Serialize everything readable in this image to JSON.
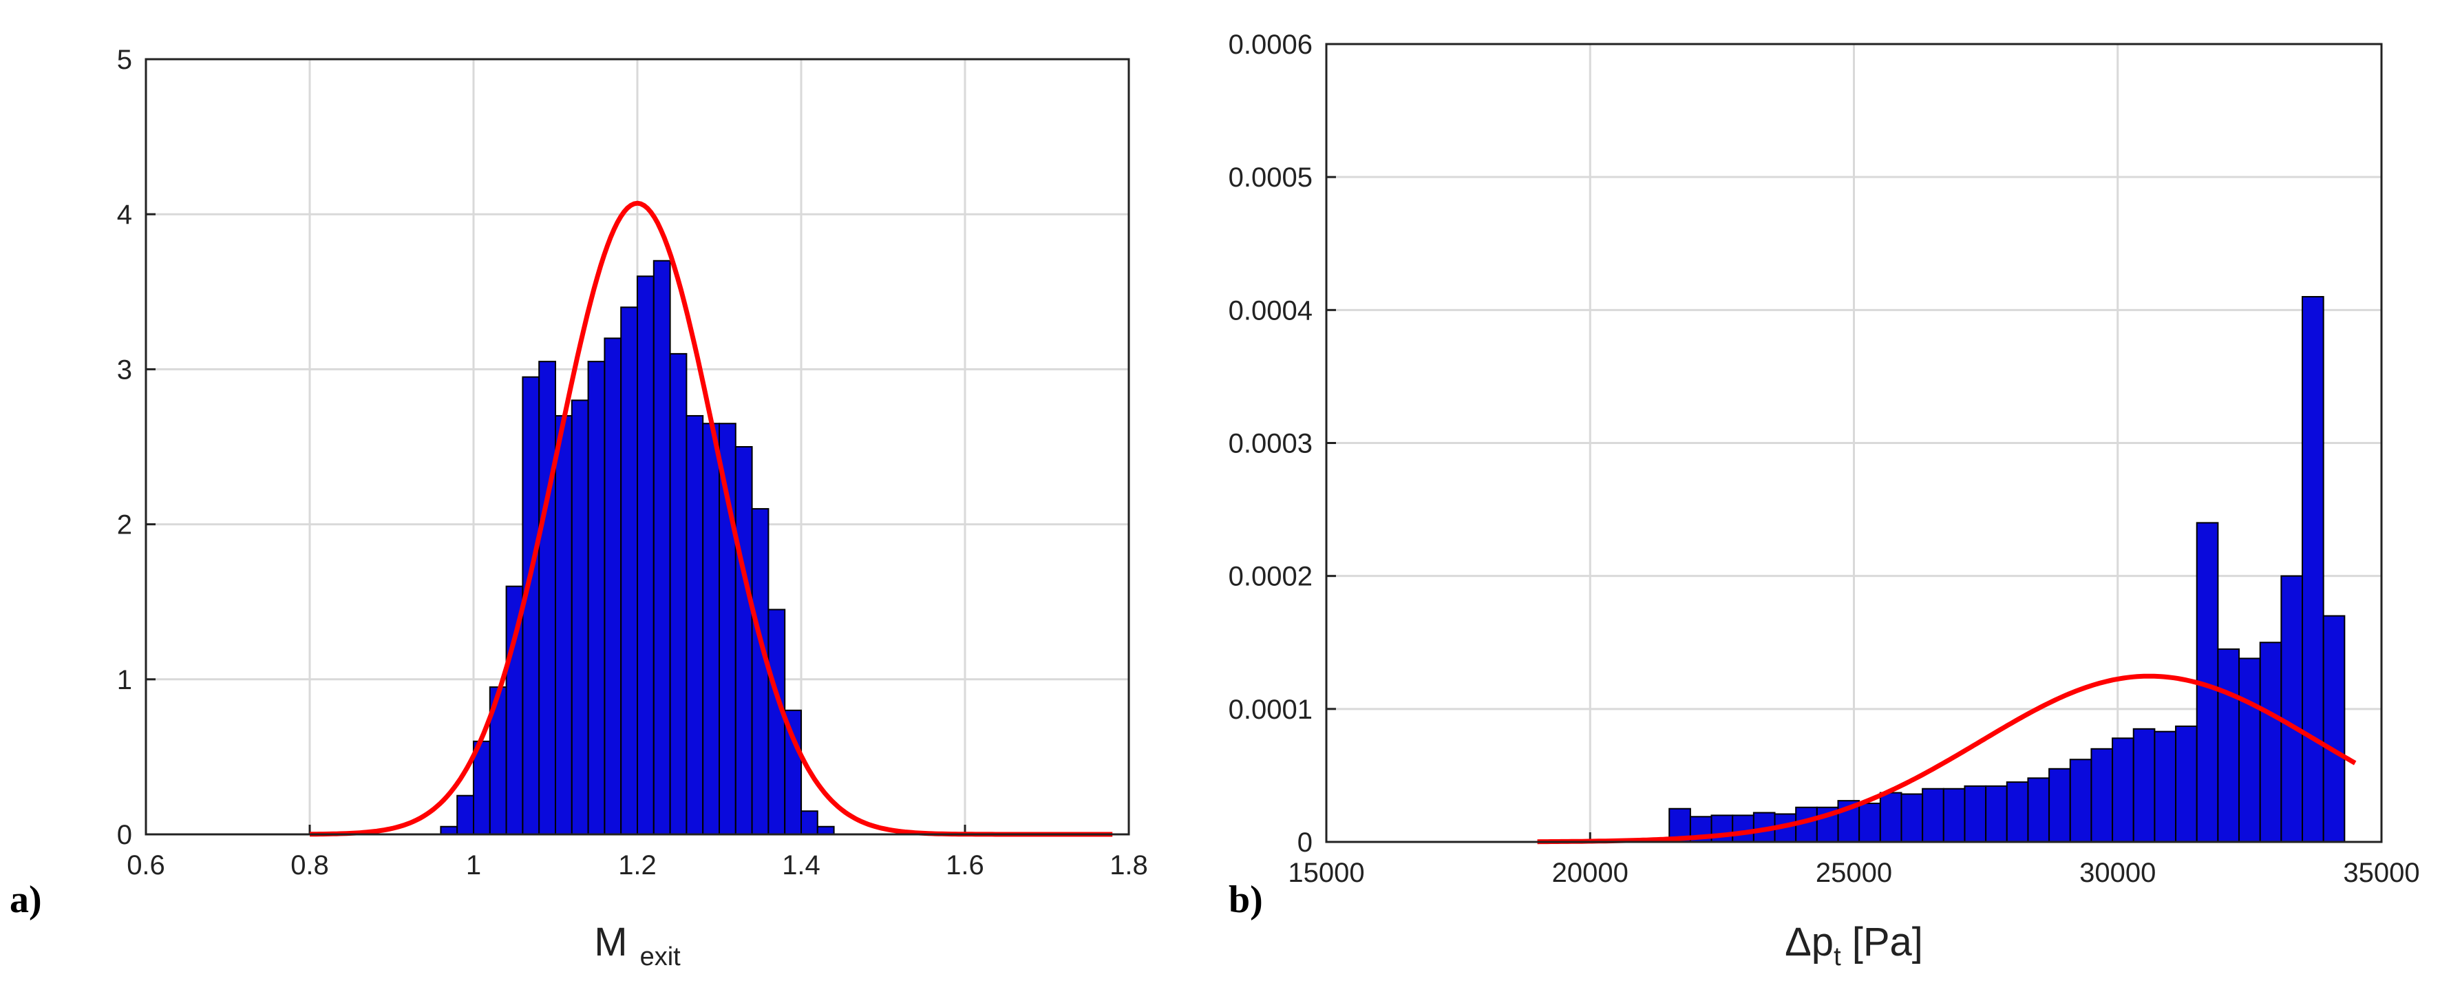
{
  "chart_data": [
    {
      "type": "bar",
      "panel_label": "a)",
      "xlabel_main": "M",
      "xlabel_sub": "exit",
      "ylabel": "",
      "xlim": [
        0.6,
        1.8
      ],
      "ylim": [
        0,
        5
      ],
      "x_ticks": [
        0.6,
        0.8,
        1.0,
        1.2,
        1.4,
        1.6,
        1.8
      ],
      "x_tick_labels": [
        "0.6",
        "0.8",
        "1",
        "1.2",
        "1.4",
        "1.6",
        "1.8"
      ],
      "y_ticks": [
        0,
        1,
        2,
        3,
        4,
        5
      ],
      "y_tick_labels": [
        "0",
        "1",
        "2",
        "3",
        "4",
        "5"
      ],
      "grid": true,
      "bar_color": "#0a0adc",
      "curve_color": "#ff0000",
      "bin_width": 0.02,
      "bin_centers": [
        0.97,
        0.99,
        1.01,
        1.03,
        1.05,
        1.07,
        1.09,
        1.11,
        1.13,
        1.15,
        1.17,
        1.19,
        1.21,
        1.23,
        1.25,
        1.27,
        1.29,
        1.31,
        1.33,
        1.35,
        1.37,
        1.39,
        1.41,
        1.43
      ],
      "values": [
        0.05,
        0.25,
        0.6,
        0.95,
        1.6,
        2.95,
        3.05,
        2.7,
        2.8,
        3.05,
        3.2,
        3.4,
        3.6,
        3.7,
        3.1,
        2.7,
        2.65,
        2.65,
        2.5,
        2.1,
        1.45,
        0.8,
        0.15,
        0.05
      ],
      "fit_curve": {
        "type": "normal pdf",
        "mean": 1.2,
        "std": 0.098,
        "x_range": [
          0.8,
          1.78
        ]
      }
    },
    {
      "type": "bar",
      "panel_label": "b)",
      "xlabel_main": "Δp",
      "xlabel_sub": "t",
      "xlabel_unit": " [Pa]",
      "ylabel": "",
      "xlim": [
        15000,
        35000
      ],
      "ylim": [
        0,
        0.0006
      ],
      "x_ticks": [
        15000,
        20000,
        25000,
        30000,
        35000
      ],
      "x_tick_labels": [
        "15000",
        "20000",
        "25000",
        "30000",
        "35000"
      ],
      "y_ticks": [
        0,
        0.0001,
        0.0002,
        0.0003,
        0.0004,
        0.0005,
        0.0006
      ],
      "y_tick_labels": [
        "0",
        "0.0001",
        "0.0002",
        "0.0003",
        "0.0004",
        "0.0005",
        "0.0006"
      ],
      "grid": true,
      "bar_color": "#0a0adc",
      "curve_color": "#ff0000",
      "bin_width": 400,
      "bin_centers": [
        21700,
        22100,
        22500,
        22900,
        23300,
        23700,
        24100,
        24500,
        24900,
        25300,
        25700,
        26100,
        26500,
        26900,
        27300,
        27700,
        28100,
        28500,
        28900,
        29300,
        29700,
        30100,
        30500,
        30900,
        31300,
        31700,
        32100,
        32500,
        32900,
        33300,
        33700,
        34100
      ],
      "values": [
        2.5e-05,
        1.9e-05,
        2e-05,
        2e-05,
        2.2e-05,
        2.1e-05,
        2.6e-05,
        2.6e-05,
        3.1e-05,
        2.9e-05,
        3.7e-05,
        3.6e-05,
        4e-05,
        4e-05,
        4.2e-05,
        4.2e-05,
        4.5e-05,
        4.8e-05,
        5.5e-05,
        6.2e-05,
        7e-05,
        7.8e-05,
        8.5e-05,
        8.3e-05,
        8.7e-05,
        0.00024,
        0.000145,
        0.000138,
        0.00015,
        0.0002,
        0.00041,
        0.00017
      ],
      "fit_curve": {
        "type": "normal pdf",
        "mean": 30600,
        "std": 3200,
        "x_range": [
          19000,
          34500
        ]
      }
    }
  ]
}
